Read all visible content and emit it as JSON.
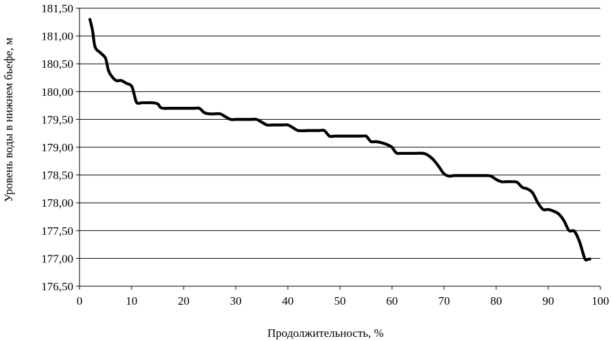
{
  "chart_data": {
    "type": "line",
    "title": "",
    "xlabel": "Продолжительность, %",
    "ylabel": "Уровень воды в нижнем бьефе, м",
    "xlim": [
      0,
      100
    ],
    "ylim": [
      176.5,
      181.5
    ],
    "x_ticks": [
      {
        "value": 0,
        "label": "0"
      },
      {
        "value": 10,
        "label": "10"
      },
      {
        "value": 20,
        "label": "20"
      },
      {
        "value": 30,
        "label": "30"
      },
      {
        "value": 40,
        "label": "40"
      },
      {
        "value": 50,
        "label": "50"
      },
      {
        "value": 60,
        "label": "60"
      },
      {
        "value": 70,
        "label": "70"
      },
      {
        "value": 80,
        "label": "80"
      },
      {
        "value": 90,
        "label": "90"
      },
      {
        "value": 100,
        "label": "100"
      }
    ],
    "y_ticks": [
      {
        "value": 176.5,
        "label": "176,50"
      },
      {
        "value": 177.0,
        "label": "177,00"
      },
      {
        "value": 177.5,
        "label": "177,50"
      },
      {
        "value": 178.0,
        "label": "178,00"
      },
      {
        "value": 178.5,
        "label": "178,50"
      },
      {
        "value": 179.0,
        "label": "179,00"
      },
      {
        "value": 179.5,
        "label": "179,50"
      },
      {
        "value": 180.0,
        "label": "180,00"
      },
      {
        "value": 180.5,
        "label": "180,50"
      },
      {
        "value": 181.0,
        "label": "181,00"
      },
      {
        "value": 181.5,
        "label": "181,50"
      }
    ],
    "grid": "horizontal",
    "legend": "none",
    "line_color": "#000000",
    "series": [
      {
        "x": [
          2.0,
          2.5,
          3.0,
          4.0,
          5.0,
          5.5,
          6.0,
          7.0,
          8.0,
          9.0,
          10.0,
          10.5,
          11.0,
          12.0,
          13.0,
          14.0,
          15.0,
          15.5,
          16.0,
          17.0,
          18.0,
          20.0,
          22.0,
          23.0,
          24.0,
          25.0,
          26.0,
          27.0,
          28.0,
          29.0,
          30.0,
          31.0,
          32.0,
          33.0,
          34.0,
          35.0,
          36.0,
          37.0,
          39.0,
          40.0,
          41.0,
          42.0,
          44.0,
          46.0,
          47.0,
          48.0,
          49.0,
          50.0,
          52.0,
          54.0,
          55.0,
          55.5,
          56.0,
          57.0,
          58.0,
          59.0,
          60.0,
          60.5,
          61.0,
          62.0,
          64.0,
          66.0,
          67.0,
          68.0,
          69.0,
          70.0,
          71.0,
          72.0,
          74.0,
          76.0,
          78.0,
          79.0,
          80.0,
          81.0,
          82.0,
          83.0,
          84.0,
          85.0,
          86.0,
          87.0,
          88.0,
          89.0,
          90.0,
          91.0,
          92.0,
          93.0,
          94.0,
          95.0,
          96.0,
          97.0,
          97.5,
          98.0
        ],
        "y": [
          181.3,
          181.1,
          180.8,
          180.7,
          180.6,
          180.4,
          180.3,
          180.2,
          180.2,
          180.15,
          180.1,
          179.95,
          179.8,
          179.8,
          179.8,
          179.8,
          179.78,
          179.72,
          179.7,
          179.7,
          179.7,
          179.7,
          179.7,
          179.7,
          179.62,
          179.6,
          179.6,
          179.6,
          179.55,
          179.5,
          179.5,
          179.5,
          179.5,
          179.5,
          179.5,
          179.45,
          179.4,
          179.4,
          179.4,
          179.4,
          179.35,
          179.3,
          179.3,
          179.3,
          179.3,
          179.2,
          179.2,
          179.2,
          179.2,
          179.2,
          179.2,
          179.15,
          179.1,
          179.1,
          179.08,
          179.05,
          179.0,
          178.93,
          178.89,
          178.89,
          178.89,
          178.89,
          178.85,
          178.77,
          178.65,
          178.52,
          178.48,
          178.49,
          178.49,
          178.49,
          178.49,
          178.48,
          178.42,
          178.38,
          178.38,
          178.38,
          178.37,
          178.28,
          178.25,
          178.18,
          178.0,
          177.88,
          177.88,
          177.85,
          177.8,
          177.68,
          177.5,
          177.49,
          177.3,
          177.0,
          176.98,
          176.99
        ]
      }
    ]
  }
}
